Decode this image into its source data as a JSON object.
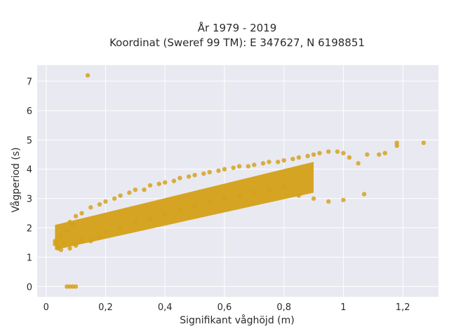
{
  "chart_data": {
    "type": "scatter",
    "title_line1": "År 1979 - 2019",
    "title_line2": "Koordinat (Sweref 99 TM): E 347627, N 6198851",
    "xlabel": "Signifikant våghöjd (m)",
    "ylabel": "Vågperiod (s)",
    "xlim": [
      -0.03,
      1.32
    ],
    "ylim": [
      -0.35,
      7.55
    ],
    "x_ticks": [
      0,
      0.2,
      0.4,
      0.6,
      0.8,
      1,
      1.2
    ],
    "x_tick_labels": [
      "0",
      "0,2",
      "0,4",
      "0,6",
      "0,8",
      "1",
      "1,2"
    ],
    "y_ticks": [
      0,
      1,
      2,
      3,
      4,
      5,
      6,
      7
    ],
    "y_tick_labels": [
      "0",
      "1",
      "2",
      "3",
      "4",
      "5",
      "6",
      "7"
    ],
    "grid": true,
    "colors": {
      "marker": "#d4a017",
      "plot_bg": "#e9e9f1",
      "grid": "#ffffff"
    },
    "points": [
      [
        0.14,
        7.2
      ],
      [
        0.07,
        0.0
      ],
      [
        0.08,
        0.0
      ],
      [
        0.09,
        0.0
      ],
      [
        0.1,
        0.0
      ],
      [
        0.03,
        1.55
      ],
      [
        0.03,
        1.45
      ],
      [
        0.04,
        1.3
      ],
      [
        0.05,
        1.25
      ],
      [
        0.05,
        1.75
      ],
      [
        0.06,
        1.5
      ],
      [
        0.07,
        1.9
      ],
      [
        0.08,
        2.2
      ],
      [
        0.08,
        1.3
      ],
      [
        0.09,
        2.1
      ],
      [
        0.1,
        1.4
      ],
      [
        0.1,
        2.4
      ],
      [
        0.12,
        1.6
      ],
      [
        0.12,
        2.5
      ],
      [
        0.15,
        2.7
      ],
      [
        0.15,
        1.55
      ],
      [
        0.18,
        2.8
      ],
      [
        0.18,
        1.7
      ],
      [
        0.2,
        2.9
      ],
      [
        0.2,
        1.85
      ],
      [
        0.23,
        3.0
      ],
      [
        0.25,
        2.0
      ],
      [
        0.25,
        3.1
      ],
      [
        0.28,
        3.2
      ],
      [
        0.3,
        2.2
      ],
      [
        0.3,
        3.3
      ],
      [
        0.33,
        3.3
      ],
      [
        0.35,
        2.3
      ],
      [
        0.35,
        3.45
      ],
      [
        0.38,
        3.5
      ],
      [
        0.4,
        2.45
      ],
      [
        0.4,
        3.55
      ],
      [
        0.43,
        3.6
      ],
      [
        0.45,
        2.6
      ],
      [
        0.45,
        3.7
      ],
      [
        0.48,
        3.75
      ],
      [
        0.5,
        2.75
      ],
      [
        0.5,
        3.8
      ],
      [
        0.53,
        3.85
      ],
      [
        0.55,
        2.9
      ],
      [
        0.55,
        3.9
      ],
      [
        0.58,
        3.95
      ],
      [
        0.6,
        3.0
      ],
      [
        0.6,
        4.0
      ],
      [
        0.63,
        4.05
      ],
      [
        0.65,
        3.1
      ],
      [
        0.65,
        4.1
      ],
      [
        0.68,
        4.1
      ],
      [
        0.7,
        3.2
      ],
      [
        0.7,
        4.15
      ],
      [
        0.73,
        4.2
      ],
      [
        0.75,
        3.3
      ],
      [
        0.75,
        4.25
      ],
      [
        0.78,
        4.25
      ],
      [
        0.8,
        3.4
      ],
      [
        0.8,
        4.3
      ],
      [
        0.83,
        4.35
      ],
      [
        0.85,
        3.1
      ],
      [
        0.85,
        4.4
      ],
      [
        0.88,
        4.45
      ],
      [
        0.9,
        3.0
      ],
      [
        0.9,
        4.5
      ],
      [
        0.92,
        4.55
      ],
      [
        0.95,
        2.9
      ],
      [
        0.95,
        4.6
      ],
      [
        0.98,
        4.6
      ],
      [
        1.0,
        2.95
      ],
      [
        1.0,
        4.55
      ],
      [
        1.02,
        4.4
      ],
      [
        1.05,
        4.2
      ],
      [
        1.08,
        4.5
      ],
      [
        1.07,
        3.15
      ],
      [
        1.12,
        4.5
      ],
      [
        1.14,
        4.55
      ],
      [
        1.18,
        4.9
      ],
      [
        1.18,
        4.8
      ],
      [
        1.27,
        4.9
      ]
    ],
    "bands": [
      {
        "x": [
          0.03,
          0.9
        ],
        "y_at_x0": [
          1.25,
          2.1
        ],
        "y_at_x1": [
          3.2,
          4.25
        ]
      }
    ]
  }
}
